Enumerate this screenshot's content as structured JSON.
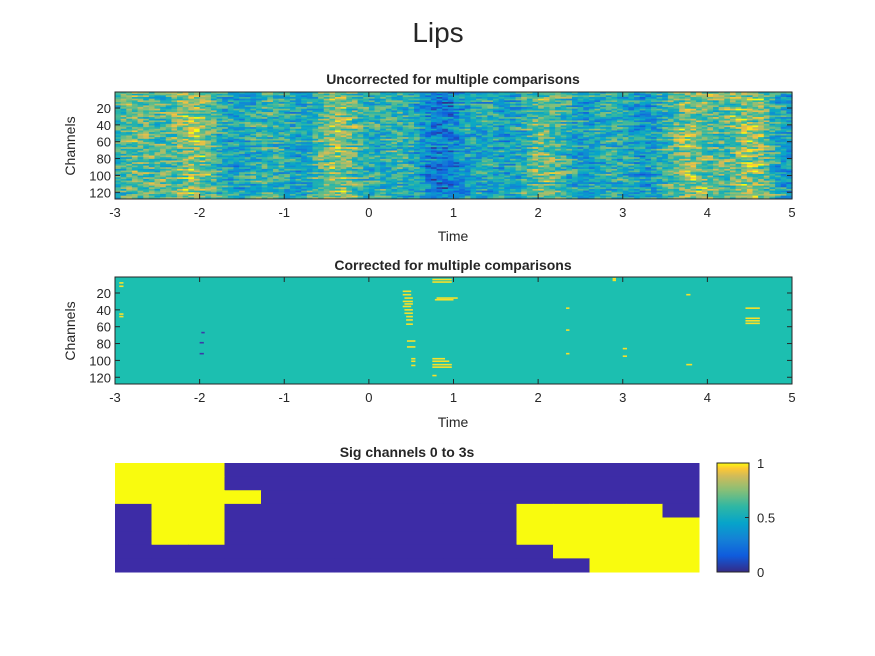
{
  "figure": {
    "title": "Lips"
  },
  "chart_data": [
    {
      "type": "heatmap",
      "title": "Uncorrected for multiple comparisons",
      "xlabel": "Time",
      "ylabel": "Channels",
      "xlim": [
        -3,
        5
      ],
      "ylim": [
        1,
        128
      ],
      "xticks": [
        -3,
        -2,
        -1,
        0,
        1,
        2,
        3,
        4,
        5
      ],
      "yticks": [
        20,
        40,
        60,
        80,
        100,
        120
      ],
      "colormap": "parula",
      "values_description": "noisy continuous values 0-1 per channel and time"
    },
    {
      "type": "heatmap",
      "title": "Corrected for multiple comparisons",
      "xlabel": "Time",
      "ylabel": "Channels",
      "xlim": [
        -3,
        5
      ],
      "ylim": [
        1,
        128
      ],
      "xticks": [
        -3,
        -2,
        -1,
        0,
        1,
        2,
        3,
        4,
        5
      ],
      "yticks": [
        20,
        40,
        60,
        80,
        100,
        120
      ],
      "background_value": 0.5,
      "colors": {
        "background": "#1cbfb0",
        "positive": "#f7e02a",
        "negative": "#3b3aa8"
      },
      "sig_segments": [
        {
          "channel": 8,
          "t0": -2.95,
          "t1": -2.9,
          "v": 1
        },
        {
          "channel": 12,
          "t0": -2.95,
          "t1": -2.9,
          "v": 1
        },
        {
          "channel": 45,
          "t0": -2.95,
          "t1": -2.9,
          "v": 1
        },
        {
          "channel": 48,
          "t0": -2.95,
          "t1": -2.9,
          "v": 1
        },
        {
          "channel": 67,
          "t0": -1.98,
          "t1": -1.94,
          "v": 0
        },
        {
          "channel": 79,
          "t0": -2.0,
          "t1": -1.95,
          "v": 0
        },
        {
          "channel": 92,
          "t0": -2.0,
          "t1": -1.95,
          "v": 0
        },
        {
          "channel": 18,
          "t0": 0.4,
          "t1": 0.5,
          "v": 1
        },
        {
          "channel": 22,
          "t0": 0.4,
          "t1": 0.5,
          "v": 1
        },
        {
          "channel": 26,
          "t0": 0.42,
          "t1": 0.52,
          "v": 1
        },
        {
          "channel": 30,
          "t0": 0.4,
          "t1": 0.52,
          "v": 1
        },
        {
          "channel": 33,
          "t0": 0.42,
          "t1": 0.52,
          "v": 1
        },
        {
          "channel": 36,
          "t0": 0.4,
          "t1": 0.5,
          "v": 1
        },
        {
          "channel": 40,
          "t0": 0.42,
          "t1": 0.52,
          "v": 1
        },
        {
          "channel": 44,
          "t0": 0.42,
          "t1": 0.52,
          "v": 1
        },
        {
          "channel": 48,
          "t0": 0.44,
          "t1": 0.52,
          "v": 1
        },
        {
          "channel": 52,
          "t0": 0.44,
          "t1": 0.52,
          "v": 1
        },
        {
          "channel": 57,
          "t0": 0.44,
          "t1": 0.52,
          "v": 1
        },
        {
          "channel": 77,
          "t0": 0.45,
          "t1": 0.55,
          "v": 1
        },
        {
          "channel": 84,
          "t0": 0.45,
          "t1": 0.55,
          "v": 1
        },
        {
          "channel": 98,
          "t0": 0.5,
          "t1": 0.55,
          "v": 1
        },
        {
          "channel": 101,
          "t0": 0.5,
          "t1": 0.55,
          "v": 1
        },
        {
          "channel": 106,
          "t0": 0.5,
          "t1": 0.55,
          "v": 1
        },
        {
          "channel": 4,
          "t0": 0.75,
          "t1": 0.98,
          "v": 1
        },
        {
          "channel": 7,
          "t0": 0.75,
          "t1": 0.98,
          "v": 1
        },
        {
          "channel": 26,
          "t0": 0.8,
          "t1": 1.05,
          "v": 1
        },
        {
          "channel": 28,
          "t0": 0.78,
          "t1": 1.0,
          "v": 1
        },
        {
          "channel": 98,
          "t0": 0.75,
          "t1": 0.9,
          "v": 1
        },
        {
          "channel": 101,
          "t0": 0.75,
          "t1": 0.95,
          "v": 1
        },
        {
          "channel": 105,
          "t0": 0.75,
          "t1": 0.98,
          "v": 1
        },
        {
          "channel": 108,
          "t0": 0.75,
          "t1": 0.98,
          "v": 1
        },
        {
          "channel": 118,
          "t0": 0.75,
          "t1": 0.8,
          "v": 1
        },
        {
          "channel": 38,
          "t0": 2.33,
          "t1": 2.37,
          "v": 1
        },
        {
          "channel": 64,
          "t0": 2.33,
          "t1": 2.37,
          "v": 1
        },
        {
          "channel": 92,
          "t0": 2.33,
          "t1": 2.37,
          "v": 1
        },
        {
          "channel": 3,
          "t0": 2.88,
          "t1": 2.92,
          "v": 1
        },
        {
          "channel": 5,
          "t0": 2.88,
          "t1": 2.92,
          "v": 1
        },
        {
          "channel": 86,
          "t0": 3.0,
          "t1": 3.05,
          "v": 1
        },
        {
          "channel": 95,
          "t0": 3.0,
          "t1": 3.05,
          "v": 1
        },
        {
          "channel": 22,
          "t0": 3.75,
          "t1": 3.8,
          "v": 1
        },
        {
          "channel": 105,
          "t0": 3.75,
          "t1": 3.82,
          "v": 1
        },
        {
          "channel": 38,
          "t0": 4.45,
          "t1": 4.62,
          "v": 1
        },
        {
          "channel": 50,
          "t0": 4.45,
          "t1": 4.62,
          "v": 1
        },
        {
          "channel": 53,
          "t0": 4.45,
          "t1": 4.62,
          "v": 1
        },
        {
          "channel": 56,
          "t0": 4.45,
          "t1": 4.62,
          "v": 1
        }
      ]
    },
    {
      "type": "heatmap",
      "title": "Sig channels 0 to 3s",
      "grid_rows": 8,
      "grid_cols": 16,
      "cells": [
        [
          1,
          1,
          1,
          0,
          0,
          0,
          0,
          0,
          0,
          0,
          0,
          0,
          0,
          0,
          0,
          0
        ],
        [
          1,
          1,
          1,
          0,
          0,
          0,
          0,
          0,
          0,
          0,
          0,
          0,
          0,
          0,
          0,
          0
        ],
        [
          1,
          1,
          1,
          1,
          0,
          0,
          0,
          0,
          0,
          0,
          0,
          0,
          0,
          0,
          0,
          0
        ],
        [
          0,
          1,
          1,
          0,
          0,
          0,
          0,
          0,
          0,
          0,
          0,
          1,
          1,
          1,
          1,
          0
        ],
        [
          0,
          1,
          1,
          0,
          0,
          0,
          0,
          0,
          0,
          0,
          0,
          1,
          1,
          1,
          1,
          1
        ],
        [
          0,
          1,
          1,
          0,
          0,
          0,
          0,
          0,
          0,
          0,
          0,
          1,
          1,
          1,
          1,
          1
        ],
        [
          0,
          0,
          0,
          0,
          0,
          0,
          0,
          0,
          0,
          0,
          0,
          0,
          1,
          1,
          1,
          1
        ],
        [
          0,
          0,
          0,
          0,
          0,
          0,
          0,
          0,
          0,
          0,
          0,
          0,
          0,
          1,
          1,
          1
        ]
      ],
      "colorbar": {
        "ticks": [
          0,
          0.5,
          1
        ],
        "tick_labels": [
          "0",
          "0.5",
          "1"
        ],
        "range": [
          0,
          1
        ]
      }
    }
  ]
}
